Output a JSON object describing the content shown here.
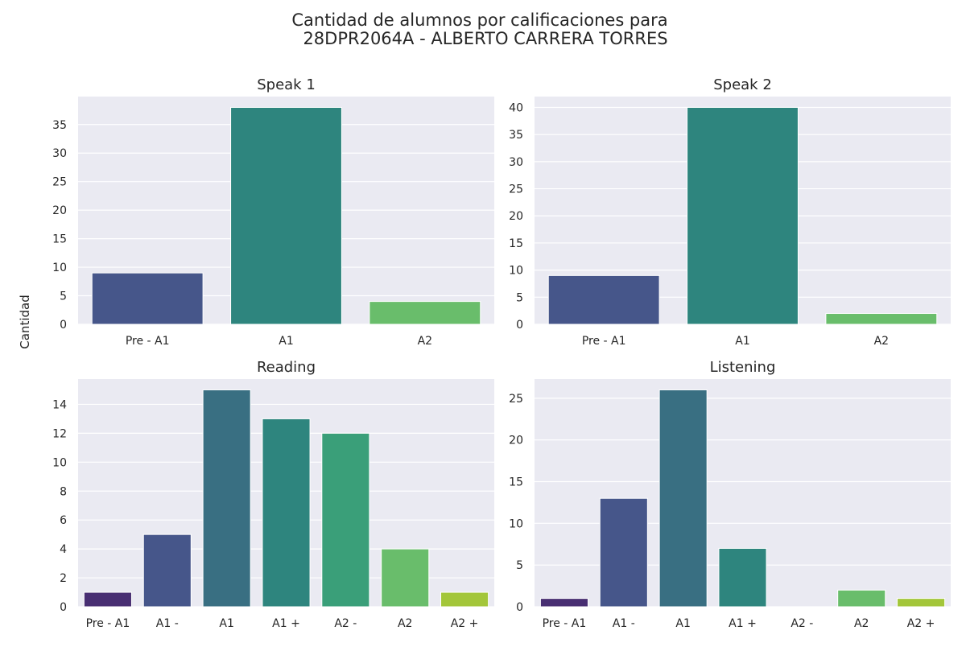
{
  "figure": {
    "title_line1": "Cantidad de alumnos por calificaciones para",
    "title_line2": "28DPR2064A - ALBERTO CARRERA TORRES",
    "ylabel": "Cantidad",
    "background": "#eaeaf2",
    "grid_color": "#ffffff"
  },
  "chart_data": [
    {
      "type": "bar",
      "title": "Speak 1",
      "categories": [
        "Pre - A1",
        "A1",
        "A2"
      ],
      "values": [
        9,
        38,
        4
      ],
      "colors": [
        "#46568a",
        "#2e857e",
        "#69bd6b"
      ],
      "ylim": [
        0,
        39.9
      ],
      "yticks": [
        0,
        5,
        10,
        15,
        20,
        25,
        30,
        35
      ],
      "grid": true
    },
    {
      "type": "bar",
      "title": "Speak 2",
      "categories": [
        "Pre - A1",
        "A1",
        "A2"
      ],
      "values": [
        9,
        40,
        2
      ],
      "colors": [
        "#46568a",
        "#2e857e",
        "#69bd6b"
      ],
      "ylim": [
        0,
        42
      ],
      "yticks": [
        0,
        5,
        10,
        15,
        20,
        25,
        30,
        35,
        40
      ],
      "grid": true
    },
    {
      "type": "bar",
      "title": "Reading",
      "categories": [
        "Pre - A1",
        "A1 -",
        "A1",
        "A1 +",
        "A2 -",
        "A2",
        "A2 +"
      ],
      "values": [
        1,
        5,
        15,
        13,
        12,
        4,
        1
      ],
      "colors": [
        "#482e72",
        "#46568a",
        "#396f82",
        "#2e857e",
        "#3a9f79",
        "#69bd6b",
        "#a3c63a"
      ],
      "ylim": [
        0,
        15.75
      ],
      "yticks": [
        0,
        2,
        4,
        6,
        8,
        10,
        12,
        14
      ],
      "grid": true
    },
    {
      "type": "bar",
      "title": "Listening",
      "categories": [
        "Pre - A1",
        "A1 -",
        "A1",
        "A1 +",
        "A2 -",
        "A2",
        "A2 +"
      ],
      "values": [
        1,
        13,
        26,
        7,
        0,
        2,
        1
      ],
      "colors": [
        "#482e72",
        "#46568a",
        "#396f82",
        "#2e857e",
        "#3a9f79",
        "#69bd6b",
        "#a3c63a"
      ],
      "ylim": [
        0,
        27.3
      ],
      "yticks": [
        0,
        5,
        10,
        15,
        20,
        25
      ],
      "grid": true
    }
  ]
}
